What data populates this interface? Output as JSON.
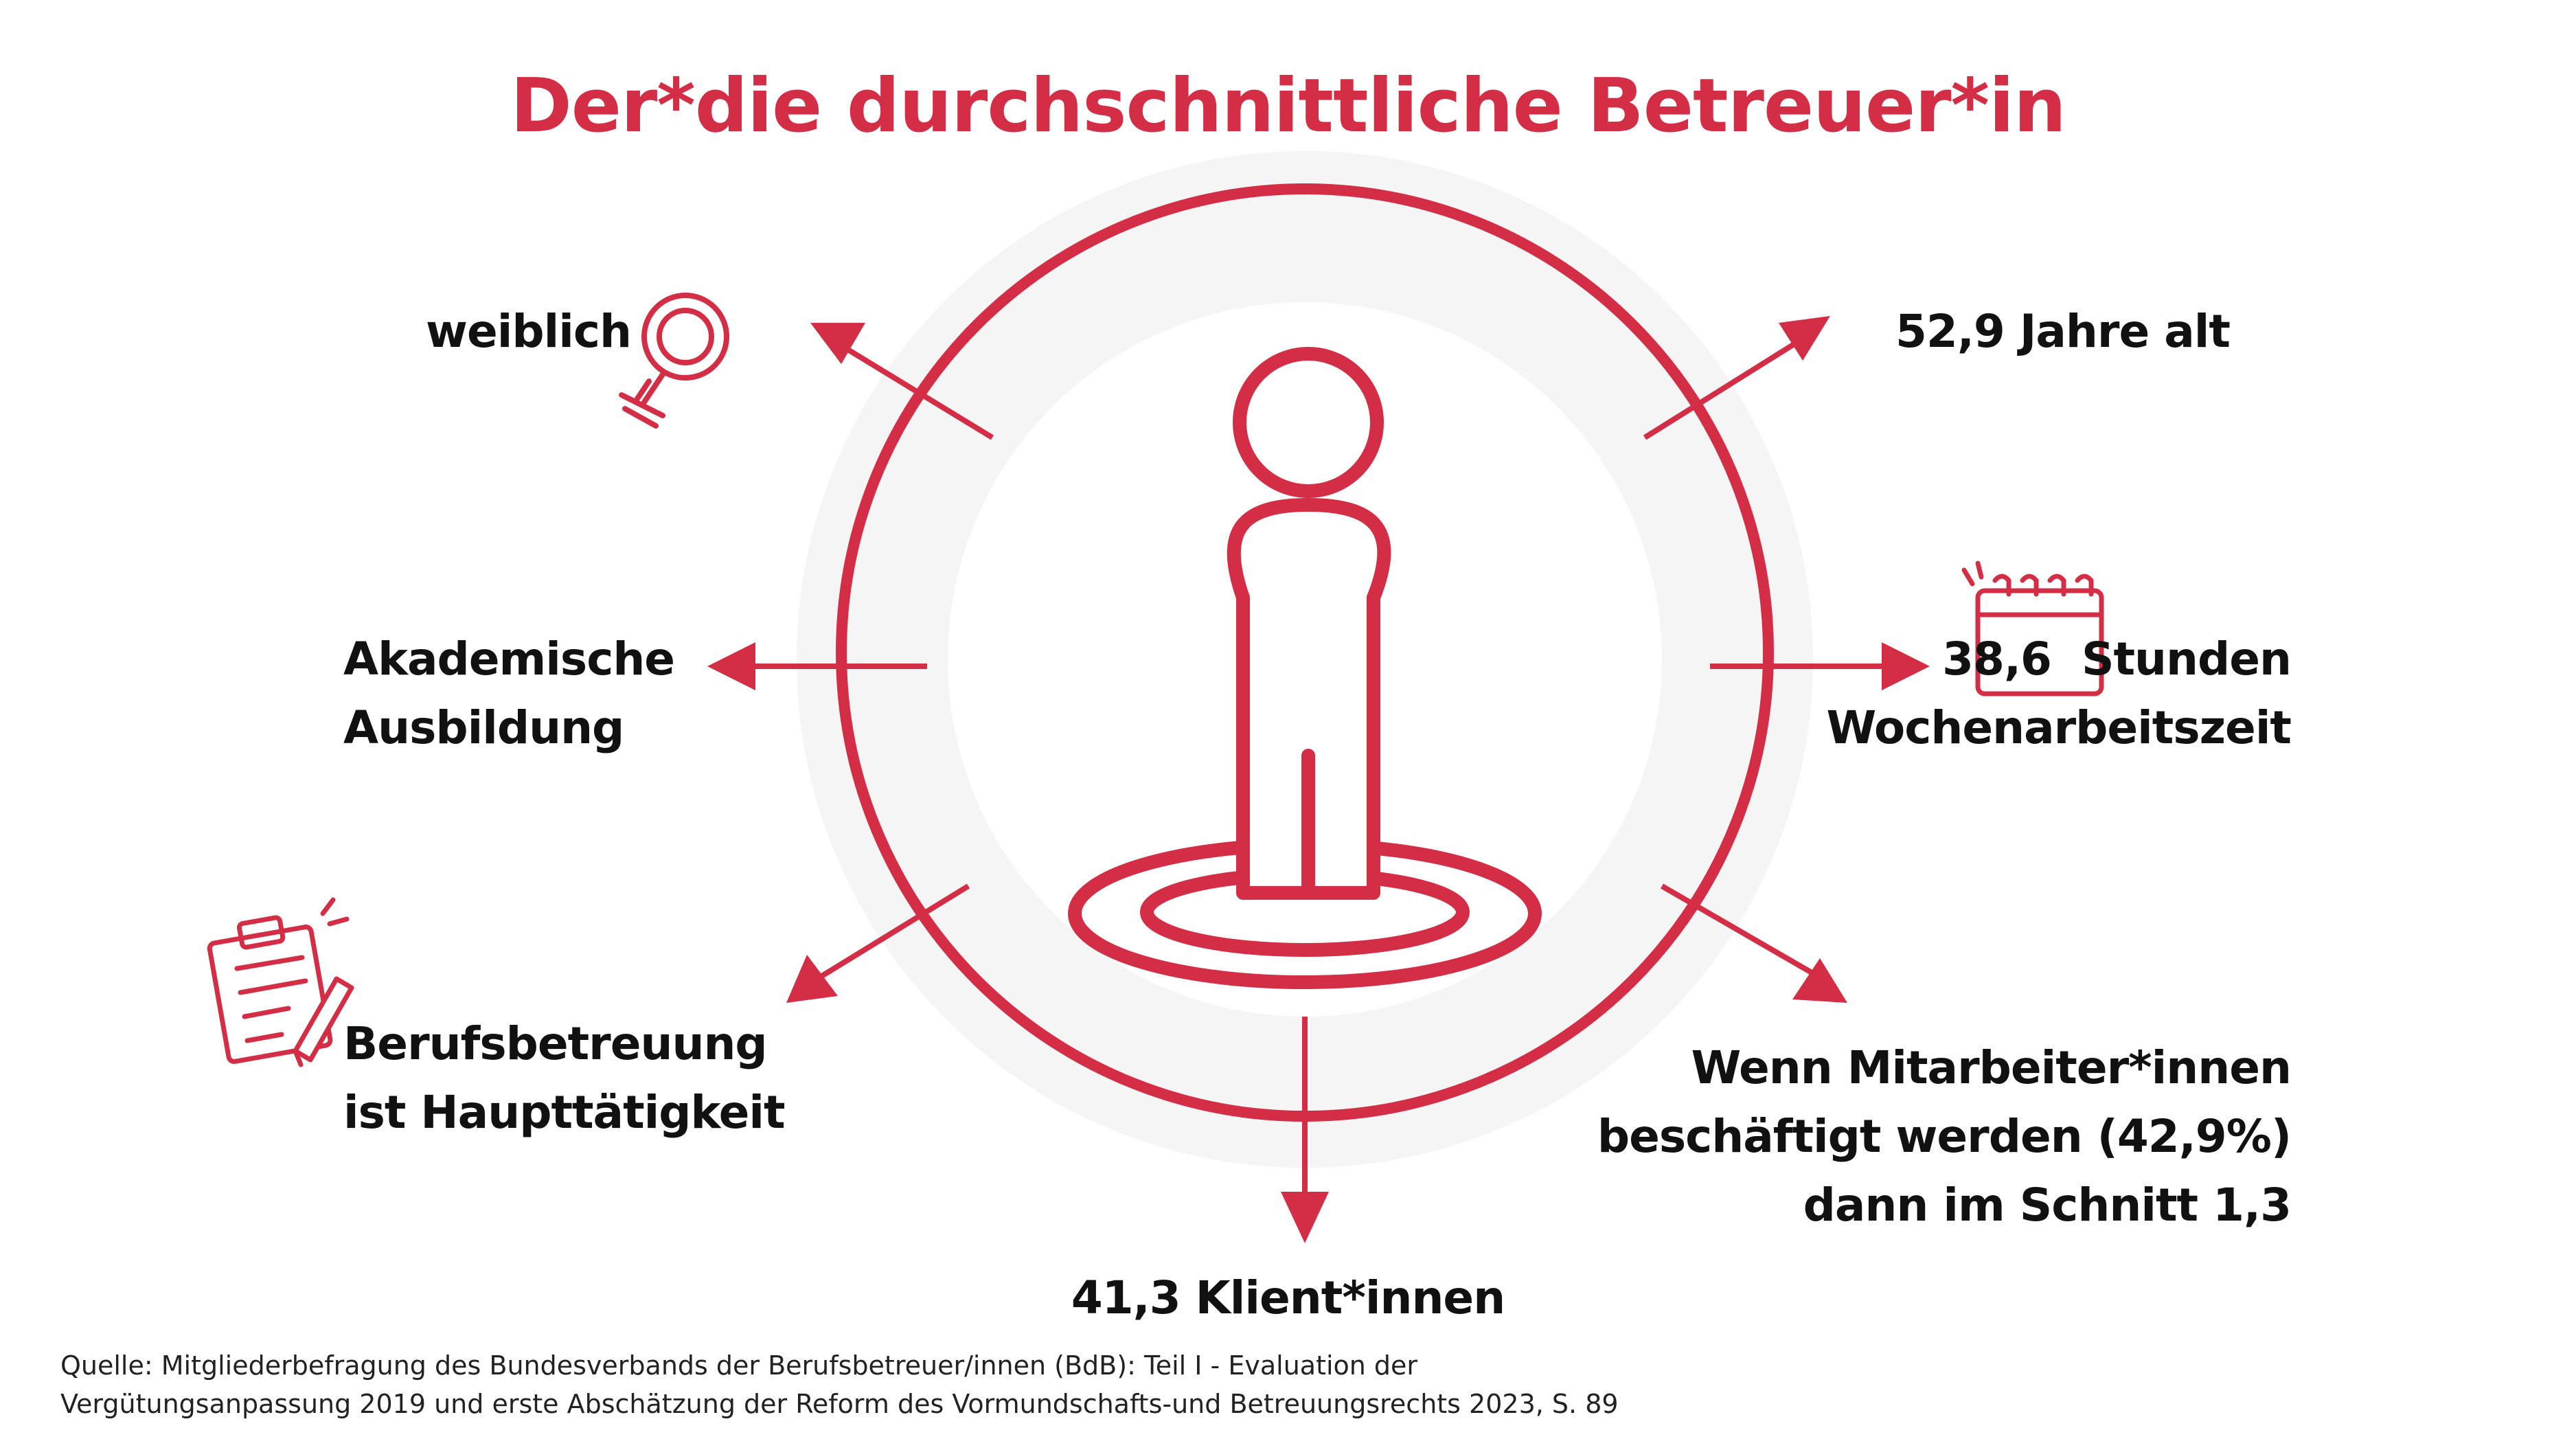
{
  "title": "Der*die durchschnittliche Betreuer*in",
  "colors": {
    "accent": "#d42e46",
    "ring_bg": "#f5f5f5",
    "text": "#111111"
  },
  "items": {
    "gender": "weiblich",
    "age": "52,9 Jahre alt",
    "education_line1": "Akademische",
    "education_line2": "Ausbildung",
    "hours_value": "38,6",
    "hours_line1_rest": "Stunden",
    "hours_line2": "Wochenarbeitszeit",
    "main_job_line1": "Berufsbetreuung",
    "main_job_line2": "ist Haupttätigkeit",
    "employees_line1": "Wenn Mitarbeiter*innen",
    "employees_line2": "beschäftigt werden (42,9%)",
    "employees_line3": "dann im Schnitt 1,3",
    "clients": "41,3 Klient*innen"
  },
  "icons": [
    "female-symbol-icon",
    "calendar-icon",
    "clipboard-pen-icon",
    "person-figure-icon"
  ],
  "source": {
    "line1": "Quelle: Mitgliederbefragung des Bundesverbands der Berufsbetreuer/innen (BdB): Teil I - Evaluation der",
    "line2": "Vergütungsanpassung 2019 und erste Abschätzung der Reform des Vormundschafts-und Betreuungsrechts 2023, S. 89"
  }
}
